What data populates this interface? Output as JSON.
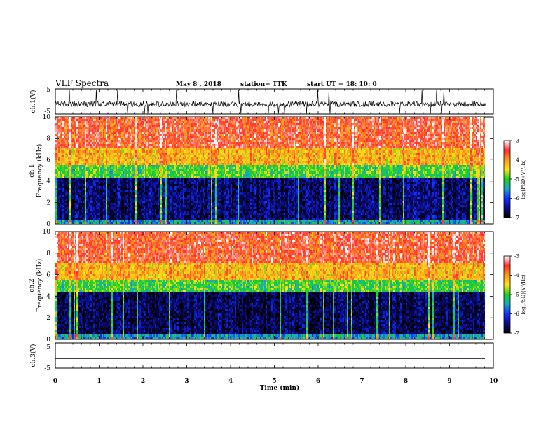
{
  "header": {
    "title": "VLF Spectra",
    "date": "May 8 , 2018",
    "station": "station= TTK",
    "start": "start UT =  18: 10: 0"
  },
  "colorbar": {
    "label": "log(PSD)(V²/Hz)",
    "ticks": [
      "-3",
      "-4",
      "-5",
      "-6",
      "-7"
    ],
    "stops": [
      "#ffffff",
      "#ff3030",
      "#ff9a1a",
      "#ffe21a",
      "#19d419",
      "#19a9c8",
      "#1030ff",
      "#0a0a88",
      "#000000"
    ]
  },
  "chart_data": [
    {
      "type": "line",
      "panel": "ch1 waveform",
      "ylabel": "ch.1(V)",
      "ylim": [
        -5,
        5
      ],
      "yticks": [
        "5",
        "-5"
      ],
      "xlim": [
        0,
        10
      ],
      "series": [
        {
          "values_summary": "noisy ~ -1 V baseline with spikes to +/-5 V"
        }
      ]
    },
    {
      "type": "heatmap",
      "panel": "ch1 spectrogram",
      "ylabel": "ch.1\nFrequency (kHz)",
      "ylim": [
        0,
        10
      ],
      "yticks": [
        "0",
        "2",
        "4",
        "6",
        "8",
        "10"
      ],
      "xlim": [
        0,
        9.85
      ],
      "bands_log_psd": [
        {
          "freq_khz": [
            0,
            0.4
          ],
          "level": -5.5
        },
        {
          "freq_khz": [
            0.4,
            4.3
          ],
          "level": -6.6
        },
        {
          "freq_khz": [
            4.3,
            5.5
          ],
          "level": -5.0
        },
        {
          "freq_khz": [
            5.5,
            7.0
          ],
          "level": -4.2
        },
        {
          "freq_khz": [
            7.0,
            10
          ],
          "level": -3.6
        }
      ]
    },
    {
      "type": "heatmap",
      "panel": "ch2 spectrogram",
      "ylabel": "ch.2\nFrequency (kHz)",
      "ylim": [
        0,
        10
      ],
      "yticks": [
        "0",
        "2",
        "4",
        "6",
        "8",
        "10"
      ],
      "xlim": [
        0,
        9.85
      ],
      "bands_log_psd": [
        {
          "freq_khz": [
            0,
            0.4
          ],
          "level": -5.5
        },
        {
          "freq_khz": [
            0.4,
            4.3
          ],
          "level": -6.7
        },
        {
          "freq_khz": [
            4.3,
            5.5
          ],
          "level": -5.0
        },
        {
          "freq_khz": [
            5.5,
            7.0
          ],
          "level": -4.2
        },
        {
          "freq_khz": [
            7.0,
            10
          ],
          "level": -3.6
        }
      ]
    },
    {
      "type": "line",
      "panel": "ch3 waveform",
      "ylabel": "ch.3(V)",
      "ylim": [
        -5,
        5
      ],
      "yticks": [
        "5",
        "-5"
      ],
      "xlim": [
        0,
        10
      ],
      "series": [
        {
          "values_summary": "flat at about -1.5 V"
        }
      ],
      "xlabel": "Time (min)",
      "xticks": [
        "0",
        "1",
        "2",
        "3",
        "4",
        "5",
        "6",
        "7",
        "8",
        "9",
        "10"
      ]
    }
  ]
}
